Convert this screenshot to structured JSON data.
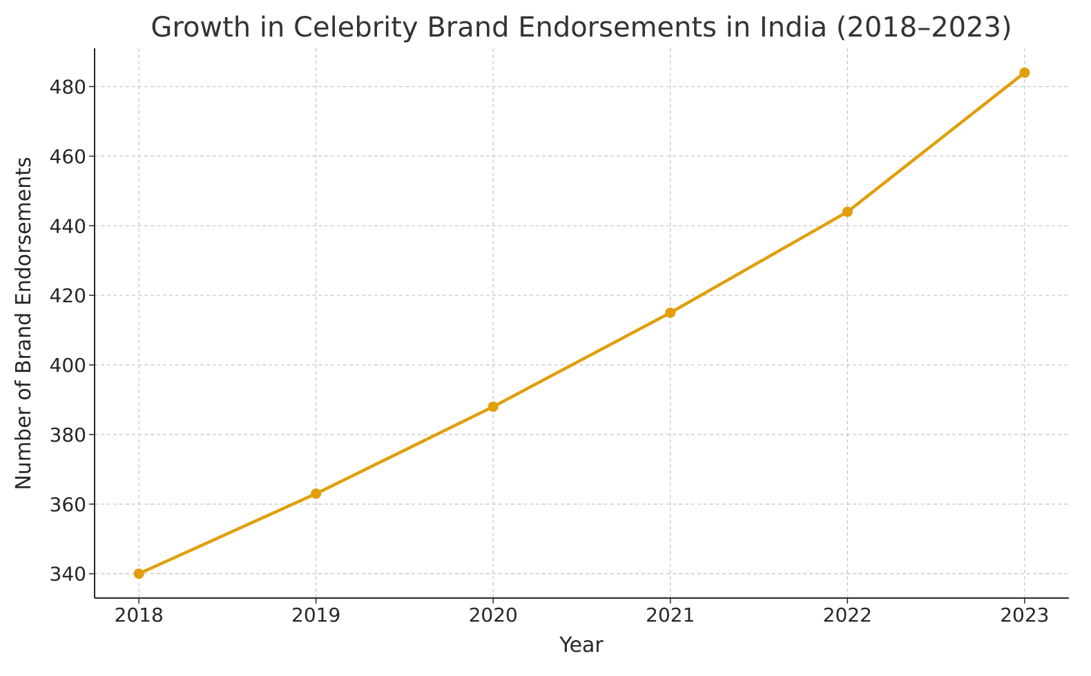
{
  "chart_data": {
    "type": "line",
    "title": "Growth in Celebrity Brand Endorsements in India (2018–2023)",
    "xlabel": "Year",
    "ylabel": "Number of Brand Endorsements",
    "x": [
      2018,
      2019,
      2020,
      2021,
      2022,
      2023
    ],
    "x_tick_labels": [
      "2018",
      "2019",
      "2020",
      "2021",
      "2022",
      "2023"
    ],
    "y_ticks": [
      340,
      360,
      380,
      400,
      420,
      440,
      460,
      480
    ],
    "y_tick_labels": [
      "340",
      "360",
      "380",
      "400",
      "420",
      "440",
      "460",
      "480"
    ],
    "series": [
      {
        "values": [
          340,
          363,
          388,
          415,
          444,
          484
        ],
        "color": "#E09F0B",
        "marker": "circle"
      }
    ],
    "xlim": [
      2017.75,
      2023.25
    ],
    "ylim": [
      333,
      491
    ],
    "grid": true,
    "grid_style": "dashed",
    "legend": "none"
  }
}
